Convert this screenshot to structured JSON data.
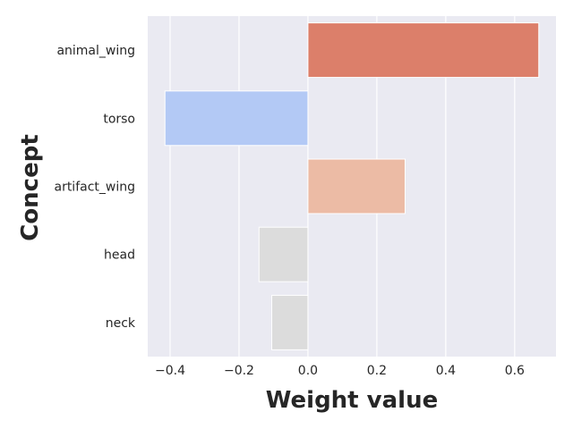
{
  "chart_data": {
    "type": "bar",
    "orientation": "horizontal",
    "categories": [
      "animal_wing",
      "torso",
      "artifact_wing",
      "head",
      "neck"
    ],
    "values": [
      0.67,
      -0.415,
      0.282,
      -0.142,
      -0.105
    ],
    "colors": [
      "#dc7f6a",
      "#b3c9f5",
      "#ecbba5",
      "#dcdcdc",
      "#dcdcdc"
    ],
    "xlabel": "Weight value",
    "ylabel": "Concept",
    "xlim": [
      -0.465,
      0.72
    ],
    "xticks": [
      -0.4,
      -0.2,
      0.0,
      0.2,
      0.4,
      0.6
    ],
    "xtick_labels": [
      "−0.4",
      "−0.2",
      "0.0",
      "0.2",
      "0.4",
      "0.6"
    ],
    "grid": true,
    "background": "#eaeaf2"
  }
}
